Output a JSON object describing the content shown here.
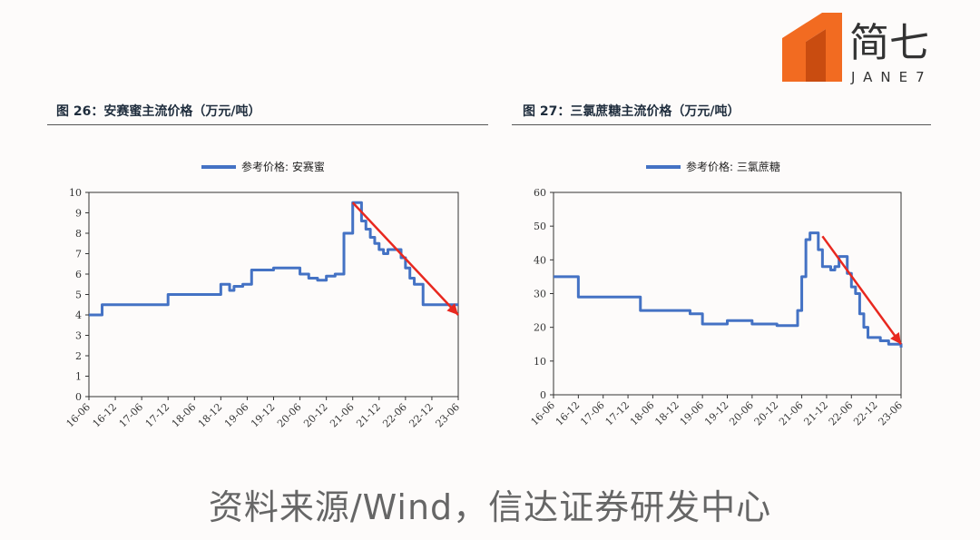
{
  "brand": {
    "name_cn": "简七",
    "name_en": "JANE7",
    "color": "#f26b21"
  },
  "source": "资料来源/Wind，信达证券研发中心",
  "colors": {
    "line": "#4472c4",
    "arrow": "#e8281f",
    "axis": "#333333"
  },
  "chart_data": [
    {
      "type": "line",
      "title": "图 26：安赛蜜主流价格（万元/吨）",
      "series": [
        {
          "name": "参考价格: 安赛蜜",
          "x": [
            "16-06",
            "16-09",
            "16-12",
            "17-03",
            "17-06",
            "17-09",
            "17-12",
            "18-01",
            "18-06",
            "18-09",
            "18-12",
            "19-01",
            "19-02",
            "19-03",
            "19-05",
            "19-07",
            "19-08",
            "19-10",
            "19-12",
            "20-03",
            "20-06",
            "20-08",
            "20-10",
            "20-12",
            "21-02",
            "21-04",
            "21-06",
            "21-07",
            "21-08",
            "21-09",
            "21-10",
            "21-11",
            "21-12",
            "22-01",
            "22-02",
            "22-03",
            "22-04",
            "22-05",
            "22-06",
            "22-07",
            "22-08",
            "22-09",
            "22-10",
            "22-11",
            "22-12",
            "23-01",
            "23-02",
            "23-03",
            "23-04",
            "23-06"
          ],
          "y": [
            4.0,
            4.5,
            4.5,
            4.5,
            4.5,
            4.5,
            5.0,
            5.0,
            5.0,
            5.0,
            5.5,
            5.5,
            5.2,
            5.4,
            5.5,
            6.2,
            6.2,
            6.2,
            6.3,
            6.3,
            6.0,
            5.8,
            5.7,
            5.9,
            6.0,
            8.0,
            9.5,
            9.5,
            8.6,
            8.2,
            7.8,
            7.5,
            7.2,
            7.0,
            7.2,
            7.2,
            7.2,
            6.8,
            6.3,
            5.8,
            5.5,
            5.5,
            4.5,
            4.5,
            4.5,
            4.5,
            4.5,
            4.5,
            4.5,
            4.5
          ]
        }
      ],
      "categories": [
        "16-06",
        "16-12",
        "17-06",
        "17-12",
        "18-06",
        "18-12",
        "19-06",
        "19-12",
        "20-06",
        "20-12",
        "21-06",
        "21-12",
        "22-06",
        "22-12",
        "23-06"
      ],
      "ylim": [
        0,
        10
      ],
      "yticks": [
        "0",
        "1",
        "2",
        "3",
        "4",
        "5",
        "6",
        "7",
        "8",
        "9",
        "10"
      ],
      "trend_arrow": {
        "from_x": "21-06",
        "from_y": 9.5,
        "to_x": "23-06",
        "to_y": 4.0
      },
      "legend": "top-center",
      "grid": false
    },
    {
      "type": "line",
      "title": "图 27：三氯蔗糖主流价格（万元/吨）",
      "series": [
        {
          "name": "参考价格: 三氯蔗糖",
          "x": [
            "16-06",
            "16-09",
            "16-12",
            "17-03",
            "17-06",
            "17-09",
            "17-12",
            "18-03",
            "18-06",
            "18-09",
            "18-12",
            "19-03",
            "19-06",
            "19-09",
            "19-12",
            "20-03",
            "20-06",
            "20-09",
            "20-12",
            "21-03",
            "21-05",
            "21-06",
            "21-07",
            "21-08",
            "21-09",
            "21-10",
            "21-11",
            "21-12",
            "22-01",
            "22-02",
            "22-03",
            "22-04",
            "22-05",
            "22-06",
            "22-07",
            "22-08",
            "22-09",
            "22-10",
            "22-11",
            "22-12",
            "23-01",
            "23-03",
            "23-06"
          ],
          "y": [
            35,
            35,
            29,
            29,
            29,
            29,
            29,
            25,
            25,
            25,
            25,
            24,
            21,
            21,
            22,
            22,
            21,
            21,
            20.5,
            20.5,
            25,
            35,
            46,
            48,
            48,
            43,
            38,
            38,
            37,
            38,
            41,
            41,
            36,
            32,
            30,
            24,
            20,
            17,
            17,
            17,
            16,
            15,
            14
          ]
        }
      ],
      "categories": [
        "16-06",
        "16-12",
        "17-06",
        "17-12",
        "18-06",
        "18-12",
        "19-06",
        "19-12",
        "20-06",
        "20-12",
        "21-06",
        "21-12",
        "22-06",
        "22-12",
        "23-06"
      ],
      "ylim": [
        0,
        60
      ],
      "yticks": [
        "0",
        "10",
        "20",
        "30",
        "40",
        "50",
        "60"
      ],
      "trend_arrow": {
        "from_x": "21-11",
        "from_y": 47,
        "to_x": "23-06",
        "to_y": 15
      },
      "legend": "top-center",
      "grid": false
    }
  ]
}
